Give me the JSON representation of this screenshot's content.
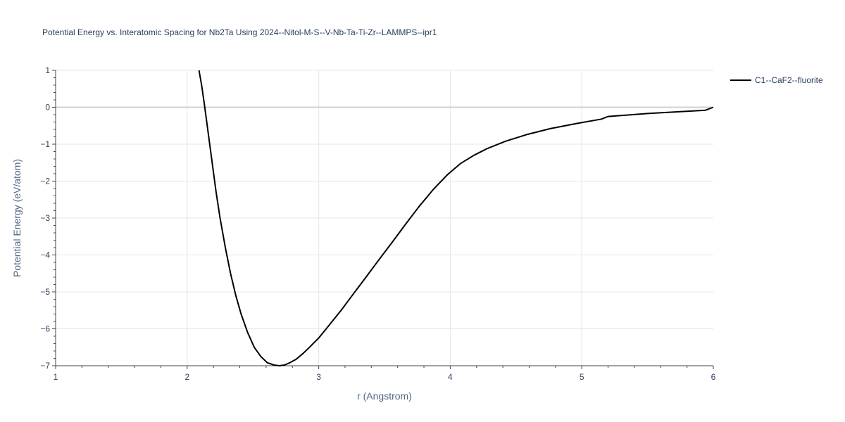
{
  "chart_data": {
    "type": "line",
    "title": "Potential Energy vs. Interatomic Spacing for Nb2Ta Using 2024--Nitol-M-S--V-Nb-Ta-Ti-Zr--LAMMPS--ipr1",
    "xlabel": "r (Angstrom)",
    "ylabel": "Potential Energy (eV/atom)",
    "xlim": [
      1,
      6
    ],
    "ylim": [
      -7,
      1
    ],
    "xticks": [
      1,
      2,
      3,
      4,
      5,
      6
    ],
    "yticks": [
      1,
      0,
      -1,
      -2,
      -3,
      -4,
      -5,
      -6,
      -7
    ],
    "grid": true,
    "legend_position": "top-right",
    "colors": {
      "series": "#000000",
      "grid": "#e5e5e5",
      "zeroline": "#d0d0d0",
      "text": "#2a3f5f"
    },
    "series": [
      {
        "name": "C1--CaF2--fluorite",
        "x": [
          2.09,
          2.11,
          2.13,
          2.16,
          2.19,
          2.22,
          2.25,
          2.29,
          2.33,
          2.37,
          2.41,
          2.46,
          2.51,
          2.56,
          2.61,
          2.66,
          2.7,
          2.74,
          2.78,
          2.83,
          2.88,
          2.93,
          3.0,
          3.08,
          3.17,
          3.26,
          3.36,
          3.46,
          3.56,
          3.66,
          3.76,
          3.87,
          3.98,
          4.08,
          4.18,
          4.28,
          4.42,
          4.58,
          4.76,
          4.96,
          5.15,
          5.2,
          5.5,
          5.94,
          6.0
        ],
        "y": [
          1.0,
          0.6,
          0.1,
          -0.7,
          -1.5,
          -2.3,
          -3.0,
          -3.8,
          -4.5,
          -5.1,
          -5.6,
          -6.1,
          -6.5,
          -6.75,
          -6.92,
          -6.98,
          -7.0,
          -6.98,
          -6.92,
          -6.82,
          -6.67,
          -6.5,
          -6.25,
          -5.9,
          -5.5,
          -5.07,
          -4.6,
          -4.12,
          -3.65,
          -3.17,
          -2.7,
          -2.23,
          -1.82,
          -1.52,
          -1.3,
          -1.12,
          -0.92,
          -0.74,
          -0.58,
          -0.44,
          -0.32,
          -0.25,
          -0.17,
          -0.08,
          0.0
        ]
      }
    ]
  }
}
